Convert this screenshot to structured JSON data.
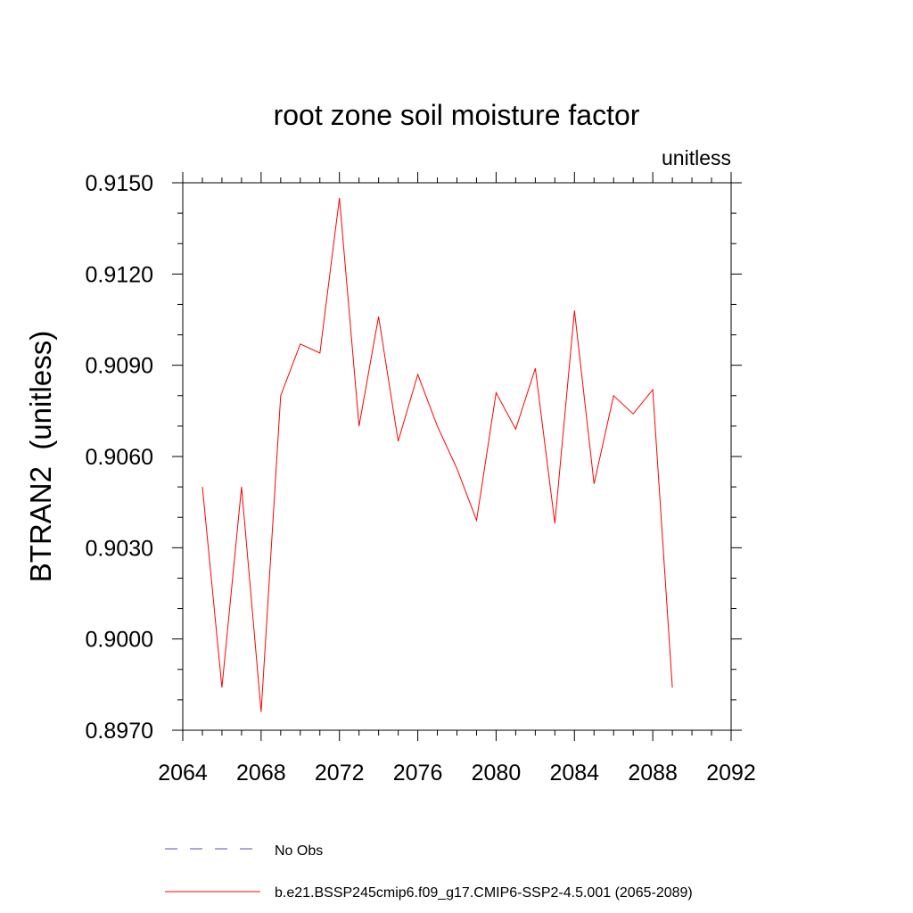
{
  "chart_data": {
    "type": "line",
    "title": "root zone soil moisture factor",
    "units_label": "unitless",
    "ylabel": "BTRAN2  (unitless)",
    "xlabel": "",
    "xlim": [
      2064,
      2092
    ],
    "ylim": [
      0.897,
      0.915
    ],
    "x_ticks": [
      2064,
      2068,
      2072,
      2076,
      2080,
      2084,
      2088,
      2092
    ],
    "x_tick_labels": [
      "2064",
      "2068",
      "2072",
      "2076",
      "2080",
      "2084",
      "2088",
      "2092"
    ],
    "y_ticks": [
      0.897,
      0.9,
      0.903,
      0.906,
      0.909,
      0.912,
      0.915
    ],
    "y_tick_labels": [
      "0.8970",
      "0.9000",
      "0.9030",
      "0.9060",
      "0.9090",
      "0.9120",
      "0.9150"
    ],
    "series": [
      {
        "name": "b.e21.BSSP245cmip6.f09_g17.CMIP6-SSP2-4.5.001 (2065-2089)",
        "color": "#ff0000",
        "x": [
          2065,
          2066,
          2067,
          2068,
          2069,
          2070,
          2071,
          2072,
          2073,
          2074,
          2075,
          2076,
          2077,
          2078,
          2079,
          2080,
          2081,
          2082,
          2083,
          2084,
          2085,
          2086,
          2087,
          2088,
          2089
        ],
        "y": [
          0.905,
          0.8984,
          0.905,
          0.8976,
          0.908,
          0.9097,
          0.9094,
          0.9145,
          0.907,
          0.9106,
          0.9065,
          0.9087,
          0.907,
          0.9056,
          0.9039,
          0.9081,
          0.9069,
          0.9089,
          0.9038,
          0.9108,
          0.9051,
          0.908,
          0.9074,
          0.9082,
          0.8984
        ]
      }
    ],
    "legend": {
      "position": "bottom",
      "entries": [
        {
          "label": "No Obs",
          "color": "#5050b4",
          "style": "dashed"
        },
        {
          "label": "b.e21.BSSP245cmip6.f09_g17.CMIP6-SSP2-4.5.001 (2065-2089)",
          "color": "#ff0000",
          "style": "solid"
        }
      ]
    }
  }
}
